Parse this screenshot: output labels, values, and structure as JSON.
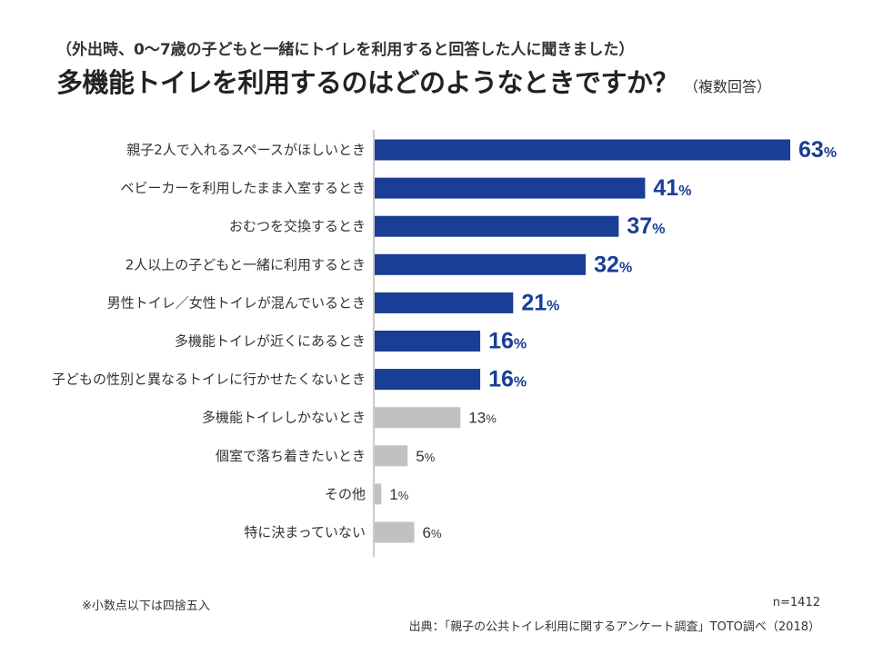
{
  "header": {
    "subtitle": "（外出時、0〜7歳の子どもと一緒にトイレを利用すると回答した人に聞きました）",
    "title": "多機能トイレを利用するのはどのようなときですか？",
    "title_note": "（複数回答）"
  },
  "chart_data": {
    "type": "bar",
    "orientation": "horizontal",
    "categories": [
      "親子2人で入れるスペースがほしいとき",
      "ベビーカーを利用したまま入室するとき",
      "おむつを交換するとき",
      "2人以上の子どもと一緒に利用するとき",
      "男性トイレ／女性トイレが混んでいるとき",
      "多機能トイレが近くにあるとき",
      "子どもの性別と異なるトイレに行かせたくないとき",
      "多機能トイレしかないとき",
      "個室で落ち着きたいとき",
      "その他",
      "特に決まっていない"
    ],
    "values": [
      63,
      41,
      37,
      32,
      21,
      16,
      16,
      13,
      5,
      1,
      6
    ],
    "value_unit": "%",
    "highlight_count": 7,
    "highlight_color": "#1a3e96",
    "other_color": "#c1c1c1",
    "grid": false,
    "legend": "none"
  },
  "footer": {
    "note": "※小数点以下は四捨五入",
    "n": "n=1412",
    "source": "出典：「親子の公共トイレ利用に関するアンケート調査」TOTO調べ（2018）"
  }
}
